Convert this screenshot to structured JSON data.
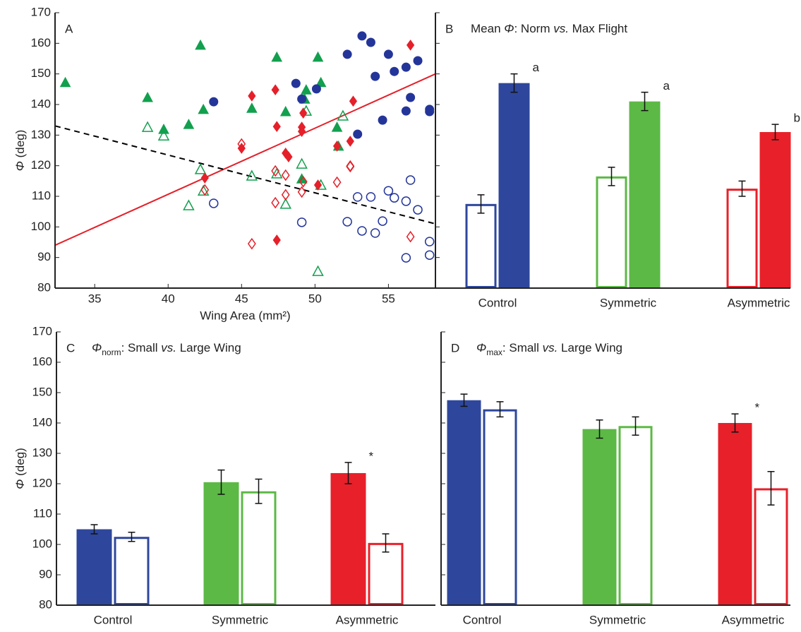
{
  "chart_data": [
    {
      "type": "scatter",
      "panel_label": "A",
      "x_label": "Wing Area (mm²)",
      "y_label": [
        {
          "text": "Φ",
          "style": "italic"
        },
        {
          "text": " (deg)"
        }
      ],
      "xlim": [
        32.3,
        58.2
      ],
      "xticks": [
        35,
        40,
        45,
        50,
        55
      ],
      "ylim": [
        80,
        170
      ],
      "yticks": [
        80,
        90,
        100,
        110,
        120,
        130,
        140,
        150,
        160,
        170
      ],
      "series": [
        {
          "marker": "triangle",
          "filled": true,
          "color": "#12a04e",
          "x": [
            33.0,
            38.6,
            39.7,
            41.4,
            42.2,
            42.4,
            45.7,
            47.4,
            48.0,
            49.1,
            49.3,
            49.4,
            50.2,
            50.4,
            51.5,
            51.6
          ],
          "values": [
            147.2,
            142.3,
            131.9,
            133.5,
            159.4,
            138.4,
            138.8,
            155.5,
            137.7,
            115.7,
            141.8,
            144.8,
            155.5,
            147.2,
            132.6,
            126.4
          ]
        },
        {
          "marker": "triangle",
          "filled": false,
          "color": "#12a04e",
          "x": [
            38.6,
            39.7,
            41.4,
            42.2,
            42.4,
            45.7,
            47.4,
            48.0,
            49.1,
            49.4,
            50.2,
            50.4,
            51.9
          ],
          "values": [
            132.6,
            129.8,
            107.0,
            118.8,
            111.8,
            116.7,
            117.4,
            107.5,
            120.6,
            137.9,
            85.5,
            113.7,
            136.3
          ]
        },
        {
          "marker": "circle",
          "filled": true,
          "color": "#24359a",
          "x": [
            43.1,
            48.7,
            49.1,
            50.1,
            52.2,
            52.9,
            53.2,
            53.8,
            54.1,
            54.6,
            55.0,
            55.4,
            56.2,
            56.2,
            56.5,
            57.0,
            57.8,
            57.8
          ],
          "values": [
            140.9,
            146.9,
            141.8,
            145.1,
            156.4,
            130.3,
            162.4,
            160.3,
            149.2,
            134.9,
            156.4,
            150.8,
            152.2,
            137.9,
            142.3,
            154.3,
            137.7,
            138.4
          ]
        },
        {
          "marker": "circle",
          "filled": false,
          "color": "#24359a",
          "x": [
            43.1,
            49.1,
            52.2,
            52.9,
            53.2,
            53.8,
            54.1,
            54.6,
            55.0,
            55.4,
            56.2,
            56.2,
            56.5,
            57.0,
            57.8,
            57.8
          ],
          "values": [
            107.7,
            101.5,
            101.7,
            109.8,
            98.7,
            109.8,
            98.0,
            101.9,
            111.8,
            109.5,
            108.4,
            89.9,
            115.3,
            105.6,
            90.8,
            95.2
          ]
        },
        {
          "marker": "diamond",
          "filled": true,
          "color": "#e5202a",
          "x": [
            42.5,
            45.0,
            45.7,
            47.3,
            47.4,
            47.4,
            48.0,
            48.2,
            49.1,
            49.1,
            49.2,
            50.2,
            51.5,
            52.4,
            52.6,
            56.5
          ],
          "values": [
            116.0,
            125.7,
            142.8,
            144.8,
            132.8,
            95.7,
            124.1,
            122.9,
            132.6,
            131.2,
            137.2,
            113.7,
            126.4,
            128.0,
            141.1,
            159.4
          ]
        },
        {
          "marker": "diamond",
          "filled": false,
          "color": "#e5202a",
          "x": [
            42.5,
            45.0,
            45.7,
            47.3,
            47.3,
            48.0,
            48.0,
            49.1,
            49.2,
            51.5,
            52.4,
            52.4,
            56.5
          ],
          "values": [
            112.1,
            127.1,
            94.5,
            118.3,
            107.9,
            116.9,
            110.5,
            111.4,
            114.8,
            114.6,
            119.9,
            119.7,
            96.8
          ]
        }
      ],
      "lines": [
        {
          "color": "#e5202a",
          "dash": false,
          "x": [
            32.3,
            58.2
          ],
          "values": [
            94,
            150
          ]
        },
        {
          "color": "#000000",
          "dash": true,
          "x": [
            32.3,
            58.2
          ],
          "values": [
            133,
            101
          ]
        }
      ]
    },
    {
      "type": "bar",
      "panel_label": "B",
      "title": [
        {
          "text": "Mean "
        },
        {
          "text": "Φ",
          "style": "italic"
        },
        {
          "text": ": Norm "
        },
        {
          "text": "vs.",
          "style": "italic"
        },
        {
          "text": " Max Flight"
        }
      ],
      "categories": [
        "Control",
        "Symmetric",
        "Asymmetric"
      ],
      "colors": [
        "#2e479c",
        "#5cb946",
        "#e8202a"
      ],
      "ylim": [
        80,
        170
      ],
      "yticks": [
        80,
        90,
        100,
        110,
        120,
        130,
        140,
        150,
        160,
        170
      ],
      "ytick_labels": false,
      "series": [
        {
          "style": "open",
          "values": [
            107.5,
            116.5,
            112.5
          ],
          "errors": [
            3,
            3,
            2.5
          ]
        },
        {
          "style": "filled",
          "values": [
            147,
            141,
            131
          ],
          "errors": [
            3,
            3,
            2.5
          ],
          "notes": [
            "a",
            "a",
            "b"
          ]
        }
      ]
    },
    {
      "type": "bar",
      "panel_label": "C",
      "title": [
        {
          "text": "Φ",
          "style": "italic"
        },
        {
          "text": "norm",
          "style": "sub"
        },
        {
          "text": ": Small "
        },
        {
          "text": "vs.",
          "style": "italic"
        },
        {
          "text": " Large Wing"
        }
      ],
      "y_label": [
        {
          "text": "Φ",
          "style": "italic"
        },
        {
          "text": " (deg)"
        }
      ],
      "categories": [
        "Control",
        "Symmetric",
        "Asymmetric"
      ],
      "colors": [
        "#2e479c",
        "#5cb946",
        "#e8202a"
      ],
      "ylim": [
        80,
        170
      ],
      "yticks": [
        80,
        90,
        100,
        110,
        120,
        130,
        140,
        150,
        160,
        170
      ],
      "ytick_labels": true,
      "series": [
        {
          "style": "filled",
          "values": [
            105,
            120.5,
            123.5
          ],
          "errors": [
            1.5,
            4,
            3.5
          ],
          "notes": [
            null,
            null,
            "*"
          ]
        },
        {
          "style": "open",
          "values": [
            102.5,
            117.5,
            100.5
          ],
          "errors": [
            1.5,
            4,
            3
          ]
        }
      ]
    },
    {
      "type": "bar",
      "panel_label": "D",
      "title": [
        {
          "text": "Φ",
          "style": "italic"
        },
        {
          "text": "max",
          "style": "sub"
        },
        {
          "text": ": Small "
        },
        {
          "text": "vs.",
          "style": "italic"
        },
        {
          "text": " Large Wing"
        }
      ],
      "categories": [
        "Control",
        "Symmetric",
        "Asymmetric"
      ],
      "colors": [
        "#2e479c",
        "#5cb946",
        "#e8202a"
      ],
      "ylim": [
        80,
        170
      ],
      "yticks": [
        80,
        90,
        100,
        110,
        120,
        130,
        140,
        150,
        160,
        170
      ],
      "ytick_labels": false,
      "series": [
        {
          "style": "filled",
          "values": [
            147.5,
            138,
            140
          ],
          "errors": [
            2,
            3,
            3
          ],
          "notes": [
            null,
            null,
            "*"
          ]
        },
        {
          "style": "open",
          "values": [
            144.5,
            139,
            118.5
          ],
          "errors": [
            2.5,
            3,
            5.5
          ]
        }
      ]
    }
  ]
}
